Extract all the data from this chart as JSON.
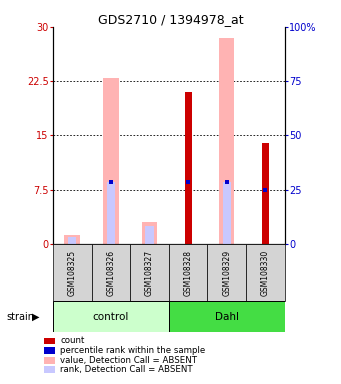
{
  "title": "GDS2710 / 1394978_at",
  "samples": [
    "GSM108325",
    "GSM108326",
    "GSM108327",
    "GSM108328",
    "GSM108329",
    "GSM108330"
  ],
  "pink_value_absent": [
    1.2,
    23.0,
    3.0,
    0.0,
    28.5,
    0.0
  ],
  "lavender_rank_absent": [
    1.0,
    8.5,
    2.5,
    0.0,
    8.5,
    0.0
  ],
  "red_count": [
    0.0,
    0.0,
    0.0,
    21.0,
    0.0,
    14.0
  ],
  "blue_rank_left": [
    0.0,
    8.5,
    0.0,
    8.5,
    8.5,
    7.5
  ],
  "left_ylim": [
    0,
    30
  ],
  "right_ylim": [
    0,
    100
  ],
  "left_yticks": [
    0,
    7.5,
    15,
    22.5,
    30
  ],
  "right_yticks": [
    0,
    25,
    50,
    75,
    100
  ],
  "left_yticklabels": [
    "0",
    "7.5",
    "15",
    "22.5",
    "30"
  ],
  "right_yticklabels": [
    "0",
    "25",
    "50",
    "75",
    "100%"
  ],
  "red_color": "#cc0000",
  "blue_color": "#0000cc",
  "pink_color": "#ffb3b3",
  "lavender_color": "#c8c8ff",
  "bg_gray": "#d4d4d4",
  "control_light": "#ccffcc",
  "dahl_green": "#44dd44",
  "legend_items": [
    {
      "color": "#cc0000",
      "label": "count"
    },
    {
      "color": "#0000cc",
      "label": "percentile rank within the sample"
    },
    {
      "color": "#ffb3b3",
      "label": "value, Detection Call = ABSENT"
    },
    {
      "color": "#c8c8ff",
      "label": "rank, Detection Call = ABSENT"
    }
  ]
}
